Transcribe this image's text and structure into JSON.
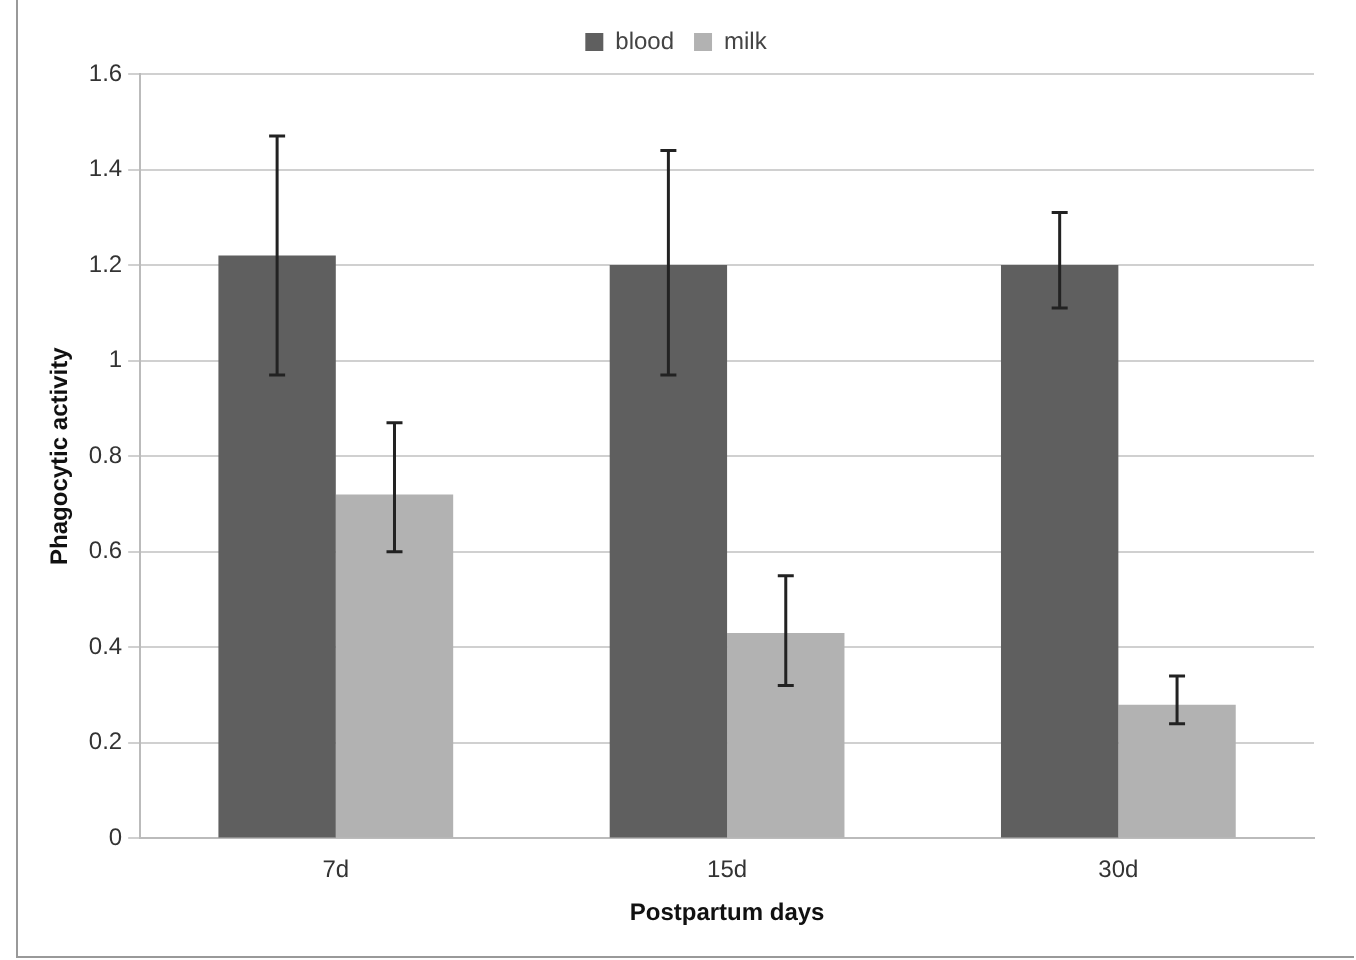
{
  "chart_data": {
    "type": "bar",
    "xlabel": "Postpartum days",
    "ylabel": "Phagocytic activity",
    "categories": [
      "7d",
      "15d",
      "30d"
    ],
    "series": [
      {
        "name": "blood",
        "color": "#5f5f5f",
        "values": [
          1.22,
          1.2,
          1.2
        ],
        "errors": [
          [
            0.97,
            1.47
          ],
          [
            0.97,
            1.44
          ],
          [
            1.11,
            1.31
          ]
        ]
      },
      {
        "name": "milk",
        "color": "#b2b2b2",
        "values": [
          0.72,
          0.43,
          0.28
        ],
        "errors": [
          [
            0.6,
            0.87
          ],
          [
            0.32,
            0.55
          ],
          [
            0.24,
            0.34
          ]
        ]
      }
    ],
    "ylim": [
      0,
      1.6
    ],
    "yticks": [
      0,
      0.2,
      0.4,
      0.6,
      0.8,
      1,
      1.2,
      1.4,
      1.6
    ],
    "grid": "y",
    "legend": "top"
  }
}
